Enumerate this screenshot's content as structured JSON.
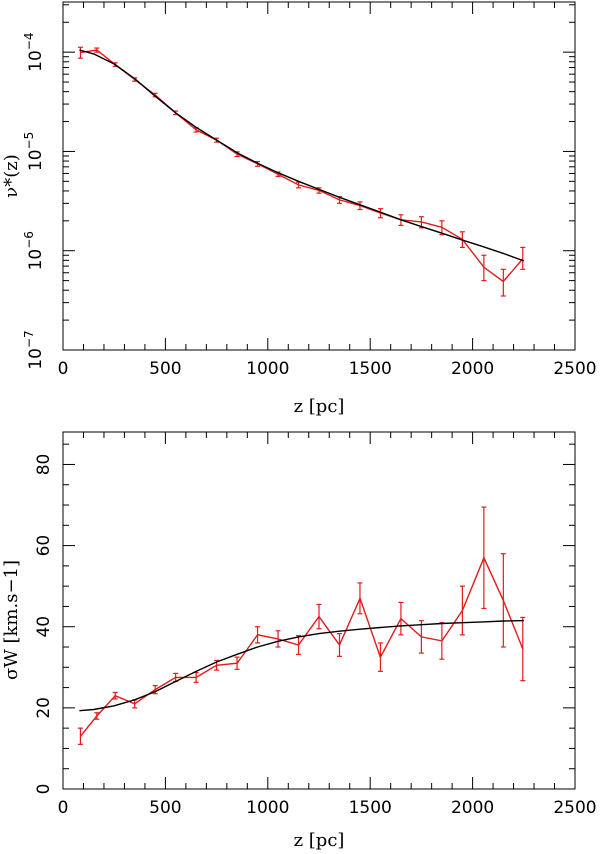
{
  "chart_data": [
    {
      "id": "top",
      "type": "line",
      "yscale": "log",
      "xlabel": "z [pc]",
      "ylabel": "ν*(z)",
      "xlim": [
        0,
        2500
      ],
      "ylim": [
        1e-07,
        0.00032
      ],
      "xticks": [
        0,
        500,
        1000,
        1500,
        2000,
        2500
      ],
      "xtick_labels": [
        "0",
        "500",
        "1000",
        "1500",
        "2000",
        "2500"
      ],
      "yticks": [
        1e-07,
        1e-06,
        1e-05,
        0.0001
      ],
      "ytick_labels": [
        {
          "base": "10",
          "exp": "−7"
        },
        {
          "base": "10",
          "exp": "−6"
        },
        {
          "base": "10",
          "exp": "−5"
        },
        {
          "base": "10",
          "exp": "−4"
        }
      ],
      "series": [
        {
          "name": "data",
          "color": "#e41a1c",
          "x": [
            85,
            165,
            255,
            350,
            450,
            550,
            650,
            750,
            850,
            950,
            1050,
            1150,
            1250,
            1350,
            1450,
            1550,
            1650,
            1750,
            1850,
            1950,
            2055,
            2150,
            2245
          ],
          "y": [
            9.9e-05,
            0.000105,
            7.5e-05,
            5.3e-05,
            3.7e-05,
            2.45e-05,
            1.65e-05,
            1.3e-05,
            9.4e-06,
            7.5e-06,
            5.9e-06,
            4.6e-06,
            4.05e-06,
            3.25e-06,
            2.85e-06,
            2.4e-06,
            2.05e-06,
            1.95e-06,
            1.72e-06,
            1.3e-06,
            6.8e-07,
            4.9e-07,
            8.3e-07
          ],
          "ylow": [
            8.7e-05,
            0.0001,
            7.2e-05,
            5.1e-05,
            3.55e-05,
            2.35e-05,
            1.57e-05,
            1.24e-05,
            8.9e-06,
            7.1e-06,
            5.6e-06,
            4.3e-06,
            3.8e-06,
            3e-06,
            2.6e-06,
            2.15e-06,
            1.8e-06,
            1.7e-06,
            1.45e-06,
            1.08e-06,
            5e-07,
            3.5e-07,
            6.5e-07
          ],
          "yhigh": [
            0.000112,
            0.00011,
            7.8e-05,
            5.5e-05,
            3.85e-05,
            2.55e-05,
            1.73e-05,
            1.36e-05,
            9.9e-06,
            7.9e-06,
            6.2e-06,
            4.9e-06,
            4.3e-06,
            3.5e-06,
            3.1e-06,
            2.65e-06,
            2.3e-06,
            2.2e-06,
            2e-06,
            1.55e-06,
            9e-07,
            6.5e-07,
            1.08e-06
          ]
        },
        {
          "name": "model",
          "color": "#000000",
          "x": [
            80,
            150,
            250,
            350,
            450,
            550,
            650,
            750,
            850,
            950,
            1050,
            1150,
            1250,
            1350,
            1450,
            1550,
            1650,
            1750,
            1850,
            1950,
            2050,
            2150,
            2250
          ],
          "y": [
            0.000105,
            9.6e-05,
            7.6e-05,
            5.4e-05,
            3.6e-05,
            2.45e-05,
            1.75e-05,
            1.3e-05,
            9.7e-06,
            7.6e-06,
            6.1e-06,
            5e-06,
            4.15e-06,
            3.45e-06,
            2.9e-06,
            2.45e-06,
            2.05e-06,
            1.75e-06,
            1.5e-06,
            1.28e-06,
            1.1e-06,
            9.4e-07,
            7.9e-07
          ]
        }
      ]
    },
    {
      "id": "bottom",
      "type": "line",
      "yscale": "linear",
      "xlabel": "z [pc]",
      "ylabel": "σW [km.s−1]",
      "xlim": [
        0,
        2500
      ],
      "ylim": [
        0,
        88
      ],
      "xticks": [
        0,
        500,
        1000,
        1500,
        2000,
        2500
      ],
      "xtick_labels": [
        "0",
        "500",
        "1000",
        "1500",
        "2000",
        "2500"
      ],
      "yticks": [
        0,
        20,
        40,
        60,
        80
      ],
      "ytick_labels": [
        "0",
        "20",
        "40",
        "60",
        "80"
      ],
      "series": [
        {
          "name": "data",
          "color": "#e41a1c",
          "x": [
            85,
            165,
            255,
            350,
            450,
            550,
            650,
            750,
            850,
            950,
            1050,
            1150,
            1250,
            1350,
            1450,
            1550,
            1650,
            1750,
            1850,
            1950,
            2055,
            2150,
            2245
          ],
          "y": [
            13,
            18,
            23,
            21,
            24.5,
            27.5,
            27.5,
            30.5,
            31,
            38,
            37,
            35.5,
            42.5,
            35.5,
            47,
            32.5,
            42,
            37.5,
            36.5,
            44,
            57,
            46.5,
            34.5
          ],
          "err": [
            2,
            0.8,
            0.8,
            1,
            1,
            1,
            1.2,
            1.2,
            1.5,
            2,
            2,
            2.3,
            3,
            2.8,
            3.8,
            3.5,
            4,
            4,
            4.5,
            6,
            12.5,
            11.5,
            7.8
          ]
        },
        {
          "name": "model",
          "color": "#000000",
          "x": [
            80,
            150,
            250,
            350,
            450,
            550,
            650,
            750,
            850,
            950,
            1050,
            1150,
            1250,
            1350,
            1450,
            1550,
            1650,
            1750,
            1850,
            1950,
            2050,
            2150,
            2250
          ],
          "y": [
            19.3,
            19.6,
            20.5,
            22,
            24,
            26.5,
            29,
            31.3,
            33.2,
            35,
            36.4,
            37.5,
            38.3,
            38.9,
            39.4,
            39.8,
            40.2,
            40.5,
            40.8,
            41.0,
            41.2,
            41.4,
            41.5
          ]
        }
      ]
    }
  ]
}
